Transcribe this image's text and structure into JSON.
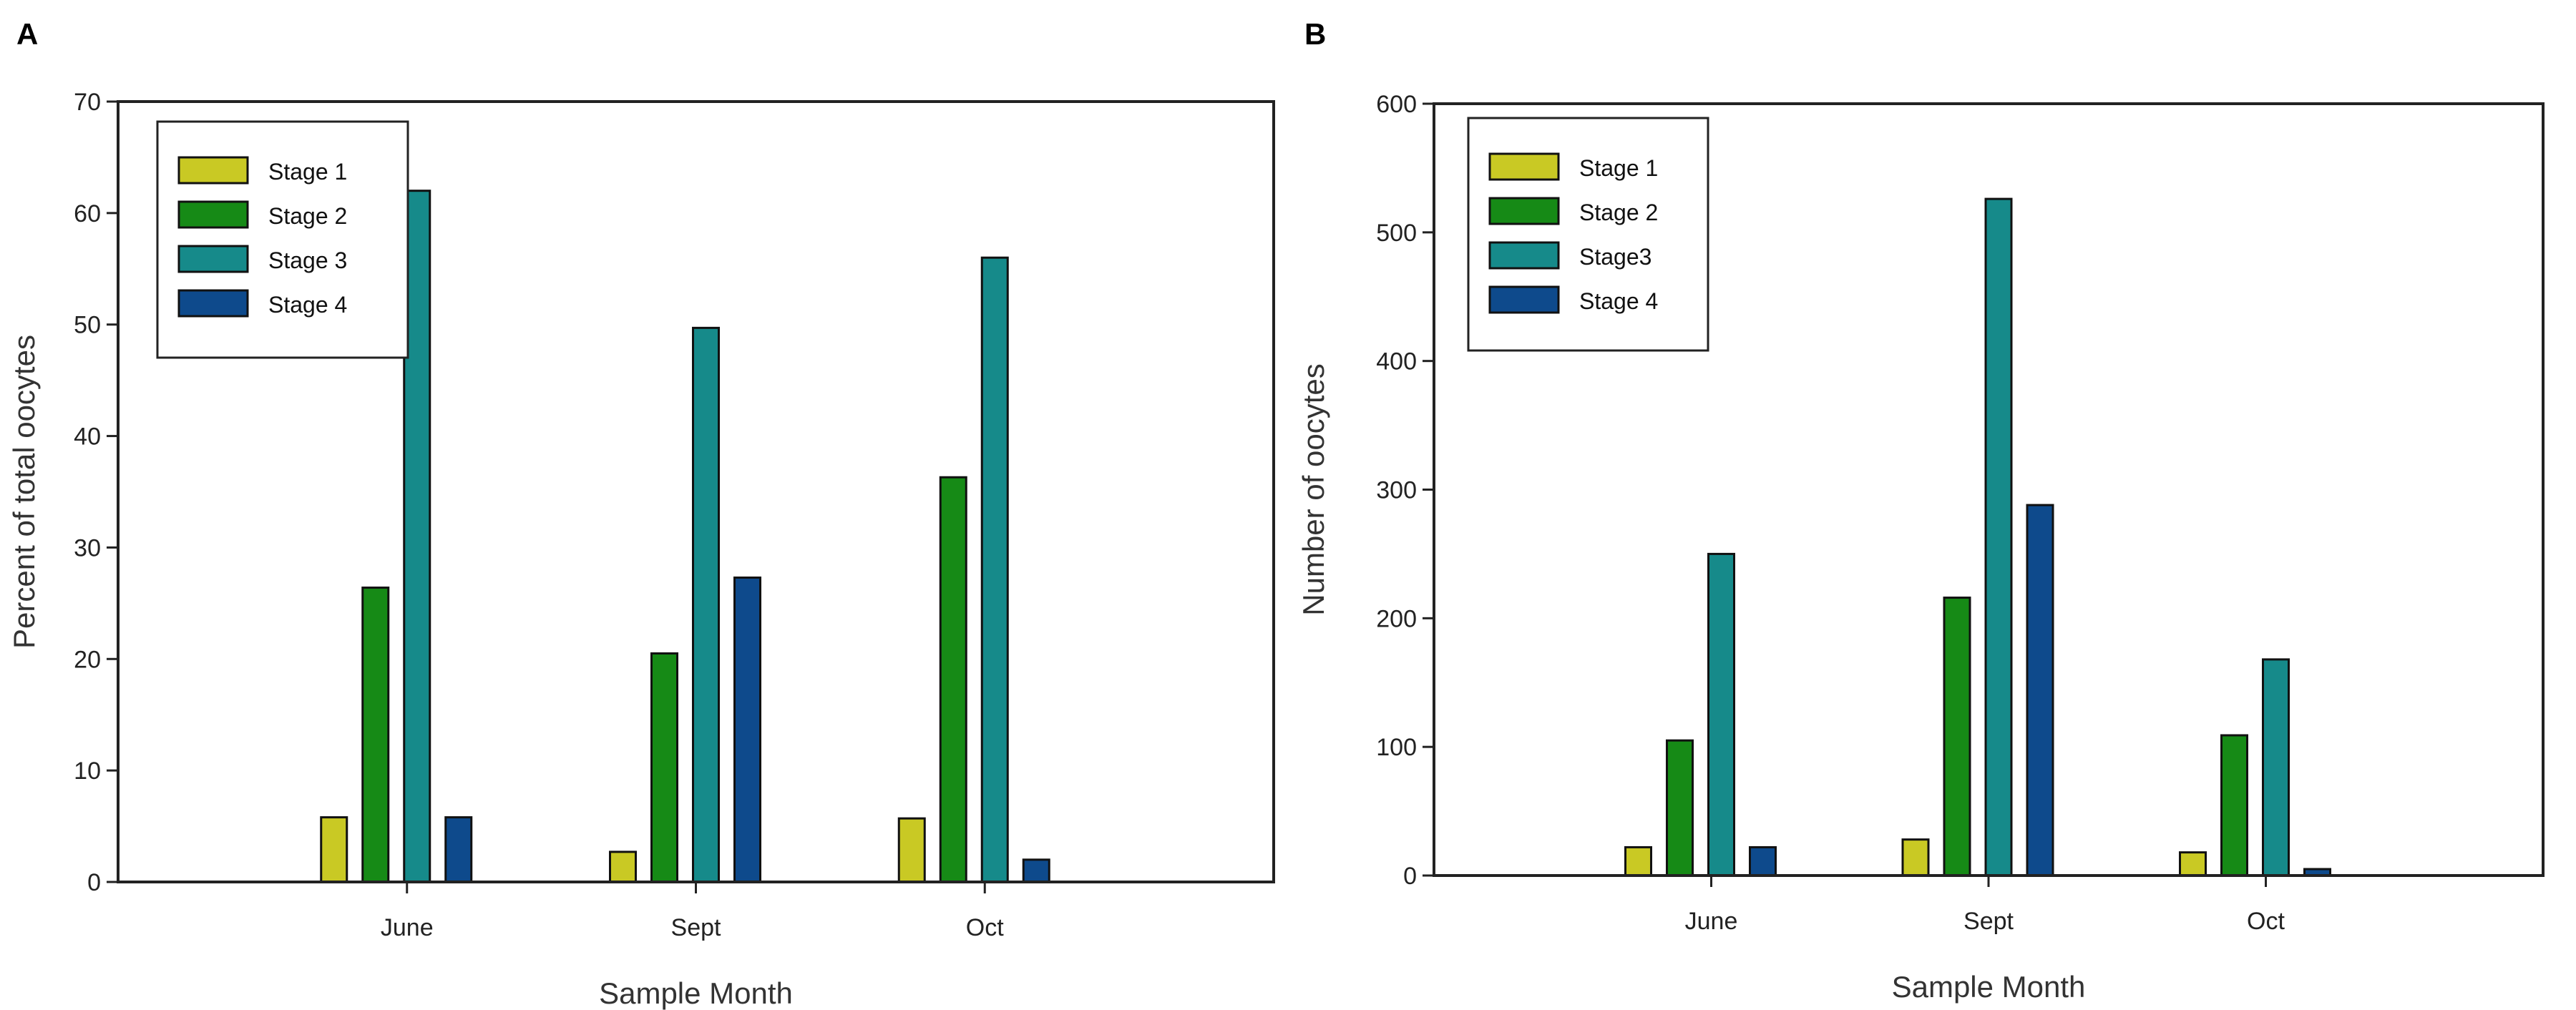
{
  "chart_data": [
    {
      "panel_label": "A",
      "type": "bar",
      "categories": [
        "June",
        "Sept",
        "Oct"
      ],
      "xlabel": "Sample Month",
      "ylabel": "Percent of total oocytes",
      "ylim": [
        0,
        70
      ],
      "yticks": [
        0,
        10,
        20,
        30,
        40,
        50,
        60,
        70
      ],
      "grid": false,
      "legend_position": "top-left",
      "series": [
        {
          "name": "Stage 1",
          "color": "#c9c924",
          "values": [
            5.8,
            2.7,
            5.7
          ]
        },
        {
          "name": "Stage 2",
          "color": "#168a16",
          "values": [
            26.4,
            20.5,
            36.3
          ]
        },
        {
          "name": "Stage 3",
          "color": "#168a8a",
          "values": [
            62.0,
            49.7,
            56.0
          ]
        },
        {
          "name": "Stage 4",
          "color": "#0e4a8c",
          "values": [
            5.8,
            27.3,
            2.0
          ]
        }
      ]
    },
    {
      "panel_label": "B",
      "type": "bar",
      "categories": [
        "June",
        "Sept",
        "Oct"
      ],
      "xlabel": "Sample Month",
      "ylabel": "Number of oocytes",
      "ylim": [
        0,
        600
      ],
      "yticks": [
        0,
        100,
        200,
        300,
        400,
        500,
        600
      ],
      "grid": false,
      "legend_position": "top-left",
      "series": [
        {
          "name": "Stage 1",
          "color": "#c9c924",
          "values": [
            22,
            28,
            18
          ]
        },
        {
          "name": "Stage 2",
          "color": "#168a16",
          "values": [
            105,
            216,
            109
          ]
        },
        {
          "name": "Stage3",
          "color": "#168a8a",
          "values": [
            250,
            526,
            168
          ]
        },
        {
          "name": "Stage 4",
          "color": "#0e4a8c",
          "values": [
            22,
            288,
            5
          ]
        }
      ]
    }
  ]
}
